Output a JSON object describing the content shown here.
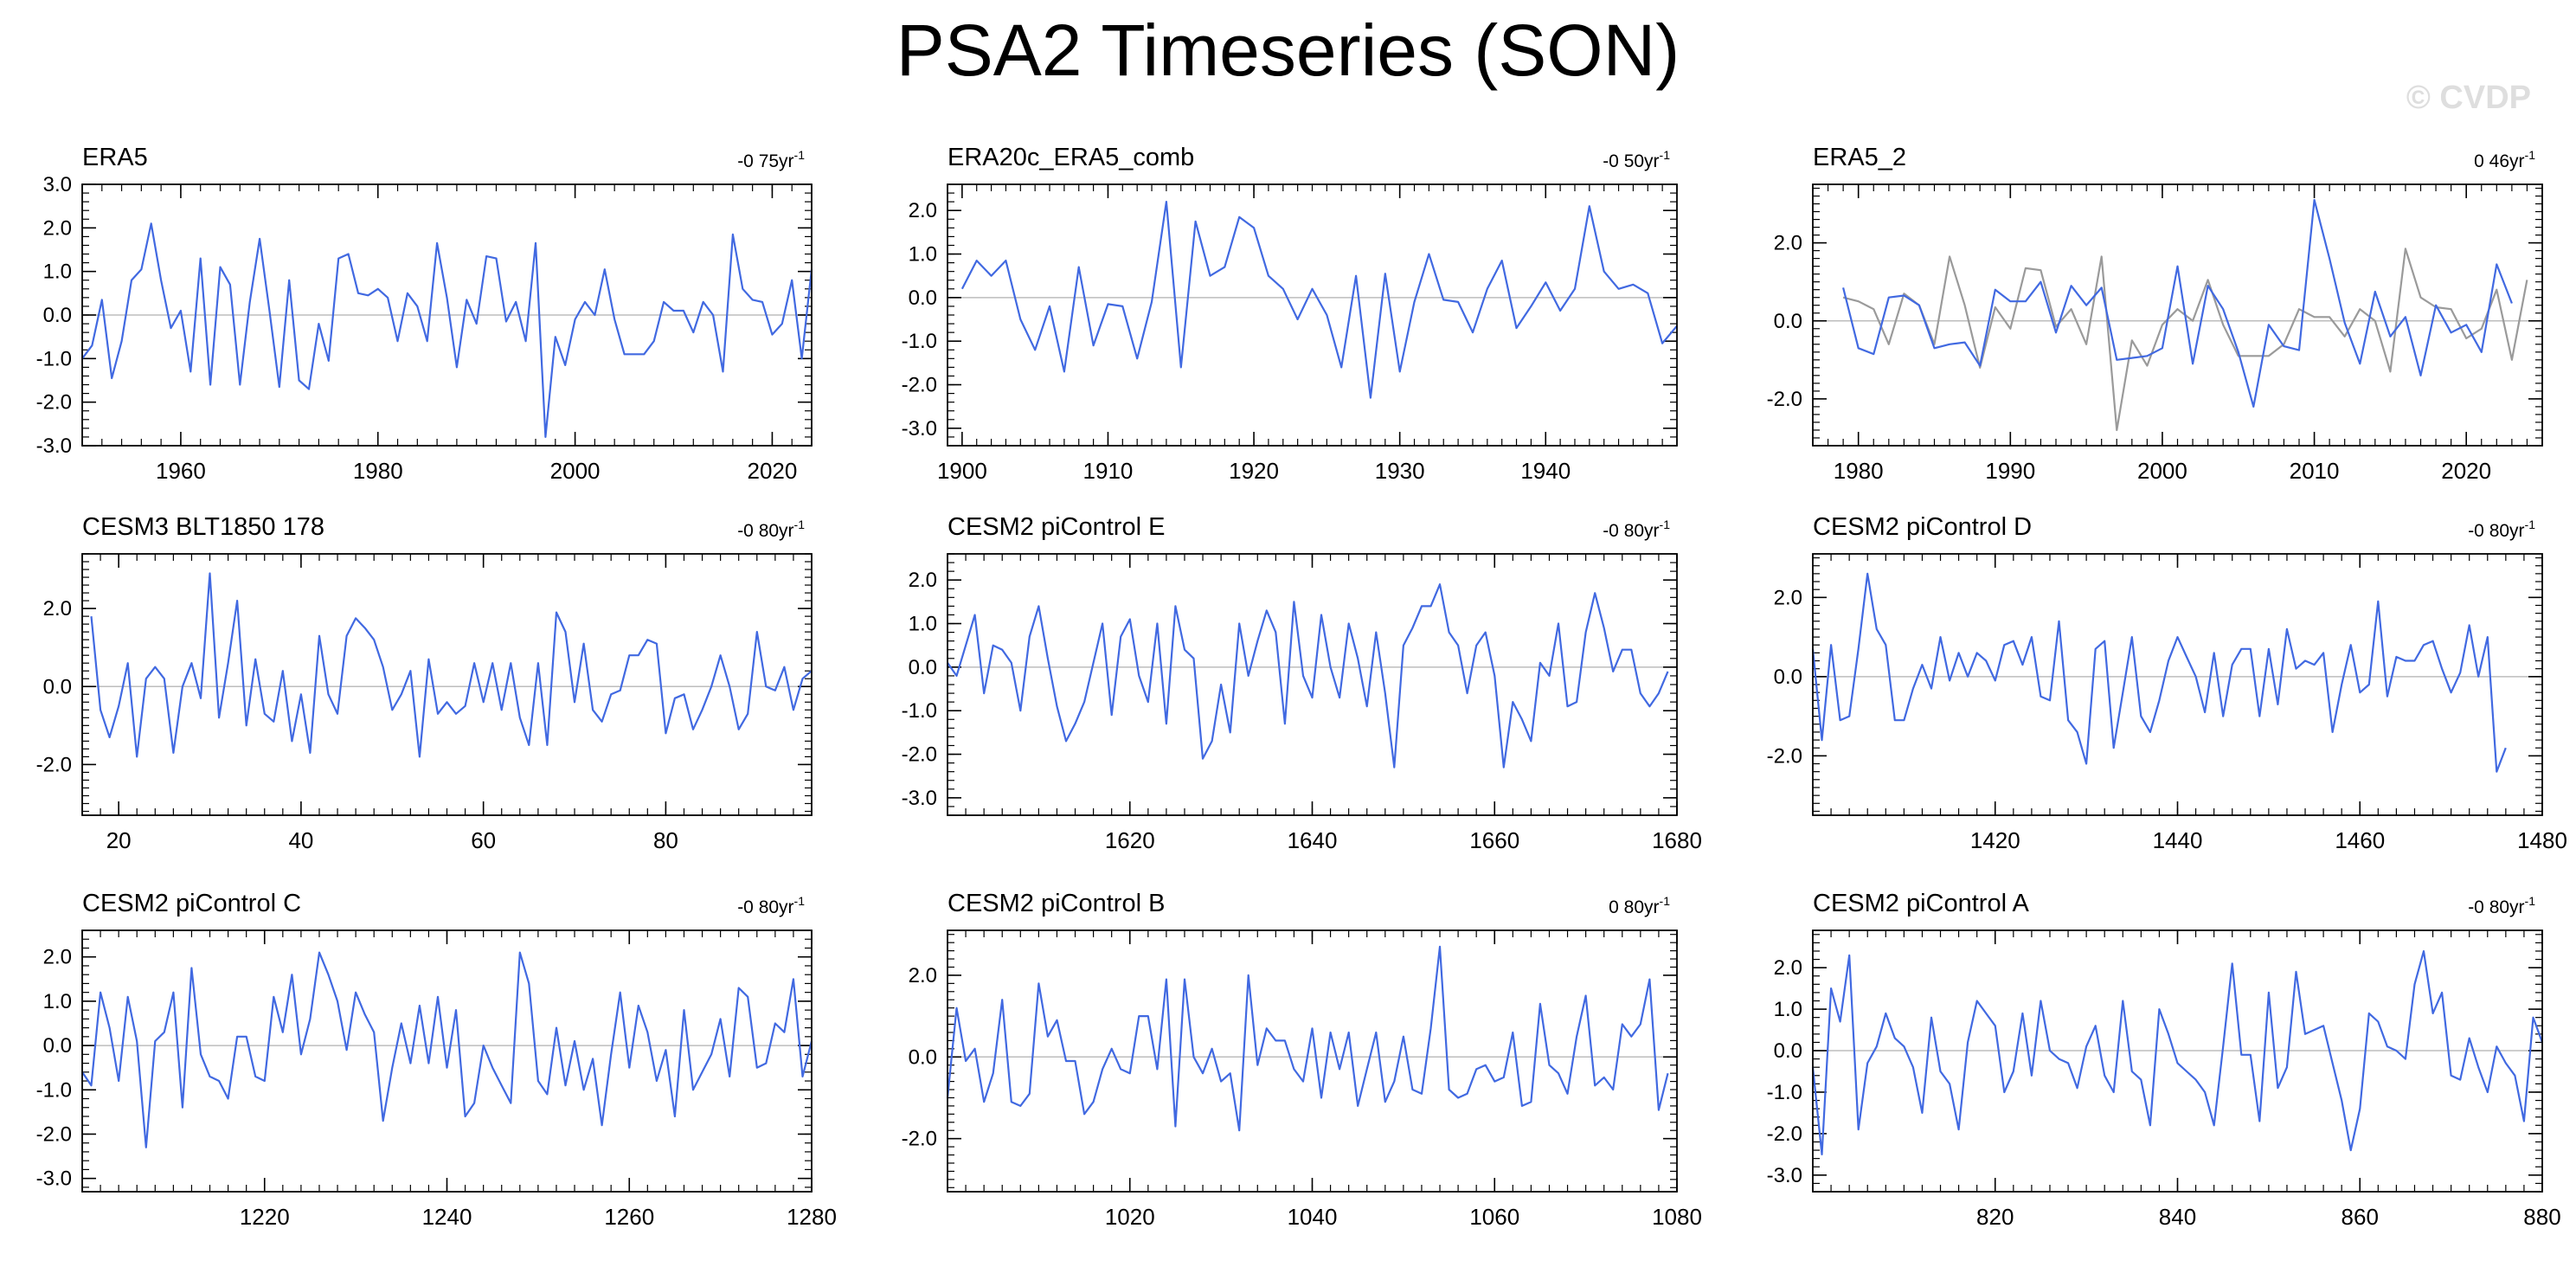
{
  "title": "PSA2 Timeseries (SON)",
  "watermark": "© CVDP",
  "colors": {
    "series": "#4169e1",
    "obs_overlay": "#9a9a9a",
    "zero_line": "#bdbdbd",
    "axis": "#000000"
  },
  "chart_data": [
    {
      "type": "line",
      "title": "ERA5",
      "trend": "-0 75yr",
      "xlim": [
        1950,
        2024
      ],
      "ylim": [
        -3.0,
        3.0
      ],
      "xticks": [
        1960,
        1980,
        2000,
        2020
      ],
      "yticks": [
        -3.0,
        -2.0,
        -1.0,
        0.0,
        1.0,
        2.0,
        3.0
      ],
      "ytick_labels": [
        "-3.0",
        "-2.0",
        "-1.0",
        "0.0",
        "1.0",
        "2.0",
        "3.0"
      ],
      "series": [
        {
          "name": "ERA5",
          "x_start": 1950,
          "values": [
            -1.0,
            -0.7,
            0.35,
            -1.45,
            -0.6,
            0.8,
            1.05,
            2.1,
            0.8,
            -0.3,
            0.1,
            -1.3,
            1.3,
            -1.6,
            1.1,
            0.7,
            -1.6,
            0.3,
            1.75,
            0.1,
            -1.65,
            0.8,
            -1.5,
            -1.7,
            -0.2,
            -1.05,
            1.3,
            1.4,
            0.5,
            0.45,
            0.6,
            0.4,
            -0.6,
            0.5,
            0.2,
            -0.6,
            1.65,
            0.4,
            -1.2,
            0.35,
            -0.2,
            1.35,
            1.3,
            -0.15,
            0.3,
            -0.6,
            1.65,
            -2.8,
            -0.5,
            -1.15,
            -0.1,
            0.3,
            0.0,
            1.05,
            -0.1,
            -0.9,
            -0.9,
            -0.9,
            -0.6,
            0.3,
            0.1,
            0.1,
            -0.4,
            0.3,
            0.0,
            -1.3,
            1.85,
            0.6,
            0.35,
            0.3,
            -0.45,
            -0.2,
            0.8,
            -1.0,
            1.05
          ]
        }
      ]
    },
    {
      "type": "line",
      "title": "ERA20c_ERA5_comb",
      "trend": "-0 50yr",
      "xlim": [
        1899,
        1949
      ],
      "ylim": [
        -3.4,
        2.6
      ],
      "xticks": [
        1900,
        1910,
        1920,
        1930,
        1940
      ],
      "yticks": [
        -3.0,
        -2.0,
        -1.0,
        0.0,
        1.0,
        2.0
      ],
      "ytick_labels": [
        "-3.0",
        "-2.0",
        "-1.0",
        "0.0",
        "1.0",
        "2.0"
      ],
      "series": [
        {
          "name": "ERA20c_ERA5_comb",
          "x_start": 1900,
          "values": [
            0.2,
            0.85,
            0.5,
            0.85,
            -0.5,
            -1.2,
            -0.2,
            -1.7,
            0.7,
            -1.1,
            -0.15,
            -0.2,
            -1.4,
            -0.1,
            2.2,
            -1.6,
            1.75,
            0.5,
            0.7,
            1.85,
            1.6,
            0.5,
            0.2,
            -0.5,
            0.2,
            -0.4,
            -1.6,
            0.5,
            -2.3,
            0.55,
            -1.7,
            -0.1,
            1.0,
            -0.05,
            -0.1,
            -0.8,
            0.2,
            0.85,
            -0.7,
            -0.2,
            0.35,
            -0.3,
            0.2,
            2.1,
            0.6,
            0.2,
            0.3,
            0.1,
            -1.05,
            -0.65
          ]
        }
      ]
    },
    {
      "type": "line",
      "title": "ERA5_2",
      "trend": "0 46yr",
      "xlim": [
        1977,
        2025
      ],
      "ylim": [
        -3.2,
        3.5
      ],
      "xticks": [
        1980,
        1990,
        2000,
        2010,
        2020
      ],
      "yticks": [
        -2.0,
        0.0,
        2.0
      ],
      "ytick_labels": [
        "-2.0",
        "0.0",
        "2.0"
      ],
      "series": [
        {
          "name": "ERA5_2",
          "x_start": 1979,
          "values": [
            0.85,
            -0.7,
            -0.85,
            0.6,
            0.65,
            0.4,
            -0.7,
            -0.6,
            -0.55,
            -1.15,
            0.8,
            0.5,
            0.5,
            1.0,
            -0.3,
            0.9,
            0.4,
            0.85,
            -1.0,
            -0.95,
            -0.9,
            -0.7,
            1.4,
            -1.1,
            0.9,
            0.3,
            -0.8,
            -2.2,
            -0.1,
            -0.65,
            -0.75,
            3.1,
            1.6,
            -0.05,
            -1.1,
            0.75,
            -0.4,
            0.1,
            -1.4,
            0.4,
            -0.3,
            -0.1,
            -0.8,
            1.45,
            0.45
          ]
        },
        {
          "name": "ERA5",
          "x_start": 1979,
          "values": [
            0.6,
            0.5,
            0.3,
            -0.6,
            0.7,
            0.4,
            -0.6,
            1.65,
            0.4,
            -1.2,
            0.35,
            -0.2,
            1.35,
            1.3,
            -0.15,
            0.3,
            -0.6,
            1.65,
            -2.8,
            -0.5,
            -1.15,
            -0.1,
            0.3,
            0.0,
            1.05,
            -0.1,
            -0.9,
            -0.9,
            -0.9,
            -0.6,
            0.3,
            0.1,
            0.1,
            -0.4,
            0.3,
            0.0,
            -1.3,
            1.85,
            0.6,
            0.35,
            0.3,
            -0.45,
            -0.2,
            0.8,
            -1.0,
            1.05
          ]
        }
      ]
    },
    {
      "type": "line",
      "title": "CESM3 BLT1850 178",
      "trend": "-0 80yr",
      "xlim": [
        16,
        96
      ],
      "ylim": [
        -3.3,
        3.4
      ],
      "xticks": [
        20,
        40,
        60,
        80
      ],
      "yticks": [
        -2.0,
        0.0,
        2.0
      ],
      "ytick_labels": [
        "-2.0",
        "0.0",
        "2.0"
      ],
      "series": [
        {
          "name": "CESM3 BLT1850 178",
          "x_start": 17,
          "values": [
            1.8,
            -0.6,
            -1.3,
            -0.5,
            0.6,
            -1.8,
            0.2,
            0.5,
            0.2,
            -1.7,
            0.0,
            0.6,
            -0.3,
            2.9,
            -0.8,
            0.6,
            2.2,
            -1.0,
            0.7,
            -0.7,
            -0.9,
            0.4,
            -1.4,
            -0.2,
            -1.7,
            1.3,
            -0.2,
            -0.7,
            1.3,
            1.75,
            1.5,
            1.2,
            0.5,
            -0.6,
            -0.2,
            0.4,
            -1.8,
            0.7,
            -0.7,
            -0.4,
            -0.7,
            -0.5,
            0.6,
            -0.4,
            0.6,
            -0.6,
            0.6,
            -0.8,
            -1.5,
            0.6,
            -1.5,
            1.9,
            1.4,
            -0.4,
            1.1,
            -0.6,
            -0.9,
            -0.2,
            -0.1,
            0.8,
            0.8,
            1.2,
            1.1,
            -1.2,
            -0.3,
            -0.2,
            -1.1,
            -0.6,
            0.0,
            0.8,
            0.0,
            -1.1,
            -0.7,
            1.4,
            0.0,
            -0.1,
            0.5,
            -0.6,
            0.2,
            0.4
          ]
        }
      ]
    },
    {
      "type": "line",
      "title": "CESM2 piControl E",
      "trend": "-0 80yr",
      "xlim": [
        1600,
        1680
      ],
      "ylim": [
        -3.4,
        2.6
      ],
      "xticks": [
        1620,
        1640,
        1660,
        1680
      ],
      "yticks": [
        -3.0,
        -2.0,
        -1.0,
        0.0,
        1.0,
        2.0
      ],
      "ytick_labels": [
        "-3.0",
        "-2.0",
        "-1.0",
        "0.0",
        "1.0",
        "2.0"
      ],
      "series": [
        {
          "name": "CESM2 piControl E",
          "x_start": 1600,
          "values": [
            0.1,
            -0.2,
            0.5,
            1.2,
            -0.6,
            0.5,
            0.4,
            0.1,
            -1.0,
            0.7,
            1.4,
            0.2,
            -0.9,
            -1.7,
            -1.3,
            -0.8,
            0.1,
            1.0,
            -1.1,
            0.7,
            1.1,
            -0.2,
            -0.8,
            1.0,
            -1.3,
            1.4,
            0.4,
            0.2,
            -2.1,
            -1.7,
            -0.4,
            -1.5,
            1.0,
            -0.2,
            0.6,
            1.3,
            0.8,
            -1.3,
            1.5,
            -0.2,
            -0.7,
            1.2,
            0.0,
            -0.7,
            1.0,
            0.2,
            -0.9,
            0.8,
            -0.6,
            -2.3,
            0.5,
            0.9,
            1.4,
            1.4,
            1.9,
            0.8,
            0.5,
            -0.6,
            0.5,
            0.8,
            -0.2,
            -2.3,
            -0.8,
            -1.2,
            -1.7,
            0.1,
            -0.2,
            1.0,
            -0.9,
            -0.8,
            0.8,
            1.7,
            0.9,
            -0.1,
            0.4,
            0.4,
            -0.6,
            -0.9,
            -0.6,
            -0.1
          ]
        }
      ]
    },
    {
      "type": "line",
      "title": "CESM2 piControl D",
      "trend": "-0 80yr",
      "xlim": [
        1400,
        1480
      ],
      "ylim": [
        -3.5,
        3.1
      ],
      "xticks": [
        1420,
        1440,
        1460,
        1480
      ],
      "yticks": [
        -2.0,
        0.0,
        2.0
      ],
      "ytick_labels": [
        "-2.0",
        "0.0",
        "2.0"
      ],
      "series": [
        {
          "name": "CESM2 piControl D",
          "x_start": 1400,
          "values": [
            0.7,
            -1.6,
            0.8,
            -1.1,
            -1.0,
            0.7,
            2.6,
            1.2,
            0.8,
            -1.1,
            -1.1,
            -0.3,
            0.3,
            -0.3,
            1.0,
            -0.1,
            0.6,
            0.0,
            0.6,
            0.4,
            -0.1,
            0.8,
            0.9,
            0.3,
            1.0,
            -0.5,
            -0.6,
            1.4,
            -1.1,
            -1.4,
            -2.2,
            0.7,
            0.9,
            -1.8,
            -0.4,
            1.0,
            -1.0,
            -1.4,
            -0.6,
            0.4,
            1.0,
            0.5,
            0.0,
            -0.9,
            0.6,
            -1.0,
            0.3,
            0.7,
            0.7,
            -1.0,
            0.7,
            -0.7,
            1.2,
            0.2,
            0.4,
            0.3,
            0.6,
            -1.4,
            -0.2,
            0.8,
            -0.4,
            -0.2,
            1.9,
            -0.5,
            0.5,
            0.4,
            0.4,
            0.8,
            0.9,
            0.2,
            -0.4,
            0.1,
            1.3,
            0.0,
            1.0,
            -2.4,
            -1.8
          ]
        }
      ]
    },
    {
      "type": "line",
      "title": "CESM2 piControl C",
      "trend": "-0 80yr",
      "xlim": [
        1200,
        1280
      ],
      "ylim": [
        -3.3,
        2.6
      ],
      "xticks": [
        1220,
        1240,
        1260,
        1280
      ],
      "yticks": [
        -3.0,
        -2.0,
        -1.0,
        0.0,
        1.0,
        2.0
      ],
      "ytick_labels": [
        "-3.0",
        "-2.0",
        "-1.0",
        "0.0",
        "1.0",
        "2.0"
      ],
      "series": [
        {
          "name": "CESM2 piControl C",
          "x_start": 1200,
          "values": [
            -0.6,
            -0.9,
            1.2,
            0.4,
            -0.8,
            1.1,
            0.1,
            -2.3,
            0.1,
            0.3,
            1.2,
            -1.4,
            1.75,
            -0.2,
            -0.7,
            -0.8,
            -1.2,
            0.2,
            0.2,
            -0.7,
            -0.8,
            1.1,
            0.3,
            1.6,
            -0.2,
            0.6,
            2.1,
            1.6,
            1.0,
            -0.1,
            1.2,
            0.7,
            0.3,
            -1.7,
            -0.5,
            0.5,
            -0.4,
            0.9,
            -0.4,
            1.1,
            -0.5,
            0.8,
            -1.6,
            -1.3,
            0.0,
            -0.5,
            -0.9,
            -1.3,
            2.1,
            1.4,
            -0.8,
            -1.1,
            0.4,
            -0.9,
            0.1,
            -1.0,
            -0.3,
            -1.8,
            -0.2,
            1.2,
            -0.5,
            0.9,
            0.3,
            -0.8,
            -0.1,
            -1.6,
            0.8,
            -1.0,
            -0.6,
            -0.2,
            0.6,
            -0.7,
            1.3,
            1.1,
            -0.5,
            -0.4,
            0.5,
            0.3,
            1.5,
            -0.7,
            0.1
          ]
        }
      ]
    },
    {
      "type": "line",
      "title": "CESM2 piControl B",
      "trend": "0 80yr",
      "xlim": [
        1000,
        1080
      ],
      "ylim": [
        -3.3,
        3.1
      ],
      "xticks": [
        1020,
        1040,
        1060,
        1080
      ],
      "yticks": [
        -2.0,
        0.0,
        2.0
      ],
      "ytick_labels": [
        "-2.0",
        "0.0",
        "2.0"
      ],
      "series": [
        {
          "name": "CESM2 piControl B",
          "x_start": 1000,
          "values": [
            -1.0,
            1.2,
            -0.1,
            0.2,
            -1.1,
            -0.4,
            1.4,
            -1.1,
            -1.2,
            -0.9,
            1.8,
            0.5,
            0.9,
            -0.1,
            -0.1,
            -1.4,
            -1.1,
            -0.3,
            0.2,
            -0.3,
            -0.4,
            1.0,
            1.0,
            -0.3,
            1.9,
            -1.7,
            1.9,
            0.0,
            -0.4,
            0.2,
            -0.6,
            -0.4,
            -1.8,
            2.0,
            -0.2,
            0.7,
            0.4,
            0.4,
            -0.3,
            -0.6,
            0.7,
            -1.0,
            0.6,
            -0.3,
            0.6,
            -1.2,
            -0.3,
            0.6,
            -1.1,
            -0.6,
            0.5,
            -0.8,
            -0.9,
            0.7,
            2.7,
            -0.8,
            -1.0,
            -0.9,
            -0.3,
            -0.2,
            -0.6,
            -0.5,
            0.6,
            -1.2,
            -1.1,
            1.3,
            -0.2,
            -0.4,
            -0.9,
            0.5,
            1.5,
            -0.7,
            -0.5,
            -0.8,
            0.8,
            0.5,
            0.8,
            1.9,
            -1.3,
            -0.4
          ]
        }
      ]
    },
    {
      "type": "line",
      "title": "CESM2 piControl A",
      "trend": "-0 80yr",
      "xlim": [
        800,
        880
      ],
      "ylim": [
        -3.4,
        2.9
      ],
      "xticks": [
        820,
        840,
        860,
        880
      ],
      "yticks": [
        -3.0,
        -2.0,
        -1.0,
        0.0,
        1.0,
        2.0
      ],
      "ytick_labels": [
        "-3.0",
        "-2.0",
        "-1.0",
        "0.0",
        "1.0",
        "2.0"
      ],
      "series": [
        {
          "name": "CESM2 piControl A",
          "x_start": 800,
          "values": [
            -0.4,
            -2.5,
            1.5,
            0.7,
            2.3,
            -1.9,
            -0.3,
            0.1,
            0.9,
            0.3,
            0.1,
            -0.4,
            -1.5,
            0.8,
            -0.5,
            -0.8,
            -1.9,
            0.2,
            1.2,
            0.9,
            0.6,
            -1.0,
            -0.5,
            0.9,
            -0.6,
            1.2,
            0.0,
            -0.2,
            -0.3,
            -0.9,
            0.1,
            0.6,
            -0.6,
            -1.0,
            1.2,
            -0.5,
            -0.7,
            -1.8,
            1.0,
            0.4,
            -0.3,
            -0.5,
            -0.7,
            -1.0,
            -1.8,
            0.1,
            2.1,
            -0.1,
            -0.1,
            -1.7,
            1.4,
            -0.9,
            -0.4,
            1.9,
            0.4,
            0.5,
            0.6,
            -0.3,
            -1.2,
            -2.4,
            -1.4,
            0.9,
            0.7,
            0.1,
            0.0,
            -0.2,
            1.6,
            2.4,
            0.9,
            1.4,
            -0.6,
            -0.7,
            0.3,
            -0.4,
            -1.0,
            0.1,
            -0.3,
            -0.6,
            -1.7,
            0.8,
            0.2
          ]
        }
      ]
    }
  ]
}
